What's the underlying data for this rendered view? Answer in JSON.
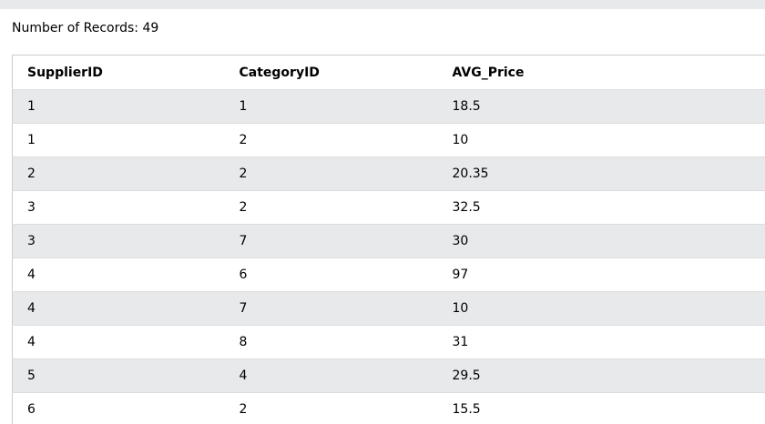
{
  "record_count_text": "Number of Records: 49",
  "table": {
    "columns": [
      "SupplierID",
      "CategoryID",
      "AVG_Price"
    ],
    "rows": [
      [
        "1",
        "1",
        "18.5"
      ],
      [
        "1",
        "2",
        "10"
      ],
      [
        "2",
        "2",
        "20.35"
      ],
      [
        "3",
        "2",
        "32.5"
      ],
      [
        "3",
        "7",
        "30"
      ],
      [
        "4",
        "6",
        "97"
      ],
      [
        "4",
        "7",
        "10"
      ],
      [
        "4",
        "8",
        "31"
      ],
      [
        "5",
        "4",
        "29.5"
      ],
      [
        "6",
        "2",
        "15.5"
      ]
    ]
  },
  "colors": {
    "page_background": "#e7e9eb",
    "panel_background": "#ffffff",
    "alt_row_background": "#e7e9eb",
    "border": "#dddddd"
  }
}
